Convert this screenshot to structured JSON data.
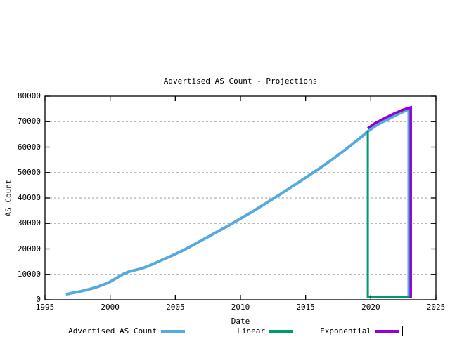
{
  "title": "Advertised AS Count - Projections",
  "axes": {
    "xlabel": "Date",
    "ylabel": "AS Count"
  },
  "chart_data": {
    "type": "line",
    "title": "Advertised AS Count - Projections",
    "xlabel": "Date",
    "ylabel": "AS Count",
    "xlim": [
      1995,
      2025
    ],
    "ylim": [
      0,
      80000
    ],
    "x_ticks": [
      "1995",
      "2000",
      "2005",
      "2010",
      "2015",
      "2020",
      "2025"
    ],
    "y_ticks": [
      "0",
      "10000",
      "20000",
      "30000",
      "40000",
      "50000",
      "60000",
      "70000",
      "80000"
    ],
    "grid": "horizontal-dashed",
    "grid_color": "#a0a0a0",
    "legend_position": "bottom-outside",
    "series": [
      {
        "name": "Advertised AS Count",
        "color": "#55aadd",
        "width": 4,
        "points": [
          [
            1996.6,
            2100
          ],
          [
            1997.0,
            2600
          ],
          [
            1997.5,
            3050
          ],
          [
            1998.0,
            3650
          ],
          [
            1998.5,
            4300
          ],
          [
            1999.0,
            5050
          ],
          [
            1999.5,
            5950
          ],
          [
            2000.0,
            7100
          ],
          [
            2000.5,
            8600
          ],
          [
            2001.0,
            10100
          ],
          [
            2001.4,
            10950
          ],
          [
            2001.9,
            11650
          ],
          [
            2002.4,
            12250
          ],
          [
            2003.0,
            13400
          ],
          [
            2003.5,
            14500
          ],
          [
            2004.0,
            15700
          ],
          [
            2004.5,
            16800
          ],
          [
            2005.0,
            17950
          ],
          [
            2005.5,
            19200
          ],
          [
            2006.0,
            20500
          ],
          [
            2006.5,
            21900
          ],
          [
            2007.0,
            23300
          ],
          [
            2007.5,
            24700
          ],
          [
            2008.0,
            26100
          ],
          [
            2008.5,
            27500
          ],
          [
            2009.0,
            28900
          ],
          [
            2009.5,
            30400
          ],
          [
            2010.0,
            31900
          ],
          [
            2010.5,
            33400
          ],
          [
            2011.0,
            34900
          ],
          [
            2011.5,
            36500
          ],
          [
            2012.0,
            38100
          ],
          [
            2012.5,
            39700
          ],
          [
            2013.0,
            41300
          ],
          [
            2013.5,
            42950
          ],
          [
            2014.0,
            44600
          ],
          [
            2014.5,
            46300
          ],
          [
            2015.0,
            48000
          ],
          [
            2015.5,
            49700
          ],
          [
            2016.0,
            51400
          ],
          [
            2016.5,
            53200
          ],
          [
            2017.0,
            55000
          ],
          [
            2017.5,
            56900
          ],
          [
            2018.0,
            58800
          ],
          [
            2018.5,
            60800
          ],
          [
            2019.0,
            62900
          ],
          [
            2019.4,
            64500
          ],
          [
            2019.77,
            66200
          ],
          [
            2020.0,
            67000
          ],
          [
            2020.5,
            68800
          ],
          [
            2021.0,
            70100
          ],
          [
            2021.5,
            71400
          ],
          [
            2022.0,
            72700
          ],
          [
            2022.5,
            73900
          ],
          [
            2022.92,
            74900
          ],
          [
            2022.92,
            600
          ]
        ]
      },
      {
        "name": "Linear",
        "color": "#009973",
        "width": 3,
        "points": [
          [
            2019.77,
            66200
          ],
          [
            2019.77,
            1100
          ],
          [
            2023.07,
            1100
          ]
        ]
      },
      {
        "name": "Exponential",
        "color": "#9400d3",
        "width": 3.5,
        "points": [
          [
            2019.77,
            67400
          ],
          [
            2020.3,
            69300
          ],
          [
            2021.0,
            71200
          ],
          [
            2021.8,
            73200
          ],
          [
            2022.5,
            74700
          ],
          [
            2023.07,
            75600
          ],
          [
            2023.07,
            700
          ]
        ]
      }
    ]
  }
}
